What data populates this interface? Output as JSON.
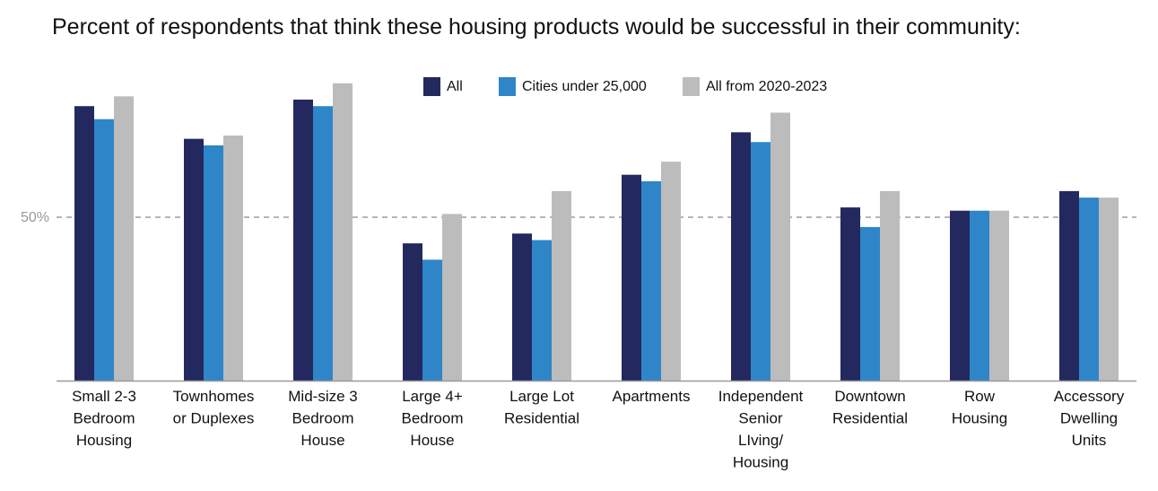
{
  "chart_data": {
    "type": "bar",
    "title": "Percent of respondents that think these housing products would be successful in their community:",
    "xlabel": "",
    "ylabel": "",
    "ylim": [
      0,
      100
    ],
    "reference_line": {
      "value": 50,
      "label": "50%",
      "style": "dashed"
    },
    "legend_position": "top-center",
    "categories": [
      [
        "Small 2-3",
        "Bedroom",
        "Housing"
      ],
      [
        "Townhomes",
        "or Duplexes"
      ],
      [
        "Mid-size 3",
        "Bedroom",
        "House"
      ],
      [
        "Large 4+",
        "Bedroom",
        "House"
      ],
      [
        "Large Lot",
        "Residential"
      ],
      [
        "Apartments"
      ],
      [
        "Independent",
        "Senior",
        "LIving/",
        "Housing"
      ],
      [
        "Downtown",
        "Residential"
      ],
      [
        "Row",
        "Housing"
      ],
      [
        "Accessory",
        "Dwelling",
        "Units"
      ]
    ],
    "series": [
      {
        "name": "All",
        "color": "#23295e",
        "values": [
          84,
          74,
          86,
          42,
          45,
          63,
          76,
          53,
          52,
          58
        ]
      },
      {
        "name": "Cities under 25,000",
        "color": "#2e86c8",
        "values": [
          80,
          72,
          84,
          37,
          43,
          61,
          73,
          47,
          52,
          56
        ]
      },
      {
        "name": "All from 2020-2023",
        "color": "#bcbcbc",
        "values": [
          87,
          75,
          91,
          51,
          58,
          67,
          82,
          58,
          52,
          56
        ]
      }
    ]
  }
}
